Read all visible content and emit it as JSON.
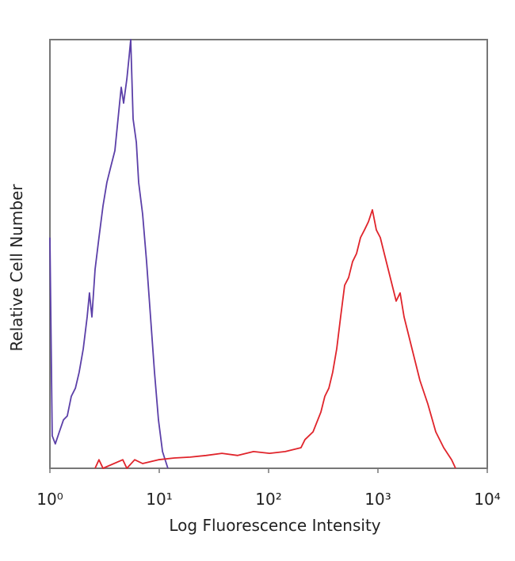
{
  "chart_data": {
    "type": "line",
    "x_label": "Log Fluorescence Intensity",
    "y_label": "Relative Cell Number",
    "xscale": "log",
    "xlim": [
      1,
      10000
    ],
    "xticks": [
      {
        "value": 1,
        "label": "10⁰"
      },
      {
        "value": 10,
        "label": "10¹"
      },
      {
        "value": 100,
        "label": "10²"
      },
      {
        "value": 1000,
        "label": "10³"
      },
      {
        "value": 10000,
        "label": "10⁴"
      }
    ],
    "ylim": [
      0,
      100
    ],
    "series": [
      {
        "color": "#5b3fa8",
        "x": [
          1,
          1.05,
          1.12,
          1.22,
          1.33,
          1.44,
          1.57,
          1.71,
          1.85,
          2.02,
          2.19,
          2.3,
          2.42,
          2.59,
          2.81,
          3.06,
          3.32,
          3.61,
          3.93,
          4.27,
          4.49,
          4.72,
          5.05,
          5.31,
          5.48,
          5.77,
          6.17,
          6.48,
          7.04,
          7.66,
          8.32,
          9.05,
          9.84,
          10.7,
          12.0
        ],
        "values": [
          53.8,
          7.6,
          5.7,
          8.5,
          11.3,
          12.2,
          16.8,
          18.7,
          22.4,
          27.9,
          35.3,
          40.9,
          35.3,
          46.4,
          53.8,
          61.2,
          66.7,
          70.4,
          74.1,
          83.4,
          88.9,
          85.2,
          90.8,
          96.3,
          100,
          81.5,
          76.0,
          66.7,
          59.3,
          48.2,
          35.3,
          22.4,
          11.3,
          3.9,
          0
        ]
      },
      {
        "color": "#e0242b",
        "x": [
          2.59,
          2.81,
          3.06,
          4.64,
          5.05,
          5.96,
          7.04,
          9.84,
          13.7,
          19.2,
          26.8,
          37.4,
          52.2,
          72.8,
          102,
          142,
          198,
          215,
          255,
          301,
          327,
          356,
          386,
          420,
          456,
          496,
          539,
          586,
          637,
          693,
          753,
          819,
          890,
          967,
          1051,
          1143,
          1242,
          1350,
          1468,
          1595,
          1734,
          1885,
          2049,
          2228,
          2421,
          2862,
          3382,
          3993,
          4721,
          5129
        ],
        "values": [
          0,
          2.0,
          0,
          2.0,
          0,
          2.0,
          1.1,
          2.0,
          2.4,
          2.6,
          3.0,
          3.5,
          3.0,
          3.9,
          3.5,
          3.9,
          4.8,
          6.7,
          8.5,
          13.1,
          16.8,
          18.7,
          22.4,
          27.9,
          35.3,
          42.7,
          44.5,
          48.2,
          50.1,
          53.8,
          55.6,
          57.5,
          60.3,
          55.6,
          53.8,
          50.1,
          46.4,
          42.7,
          39.0,
          40.9,
          35.3,
          31.6,
          27.9,
          24.2,
          20.5,
          15.0,
          8.5,
          4.8,
          2.0,
          0
        ]
      }
    ]
  }
}
